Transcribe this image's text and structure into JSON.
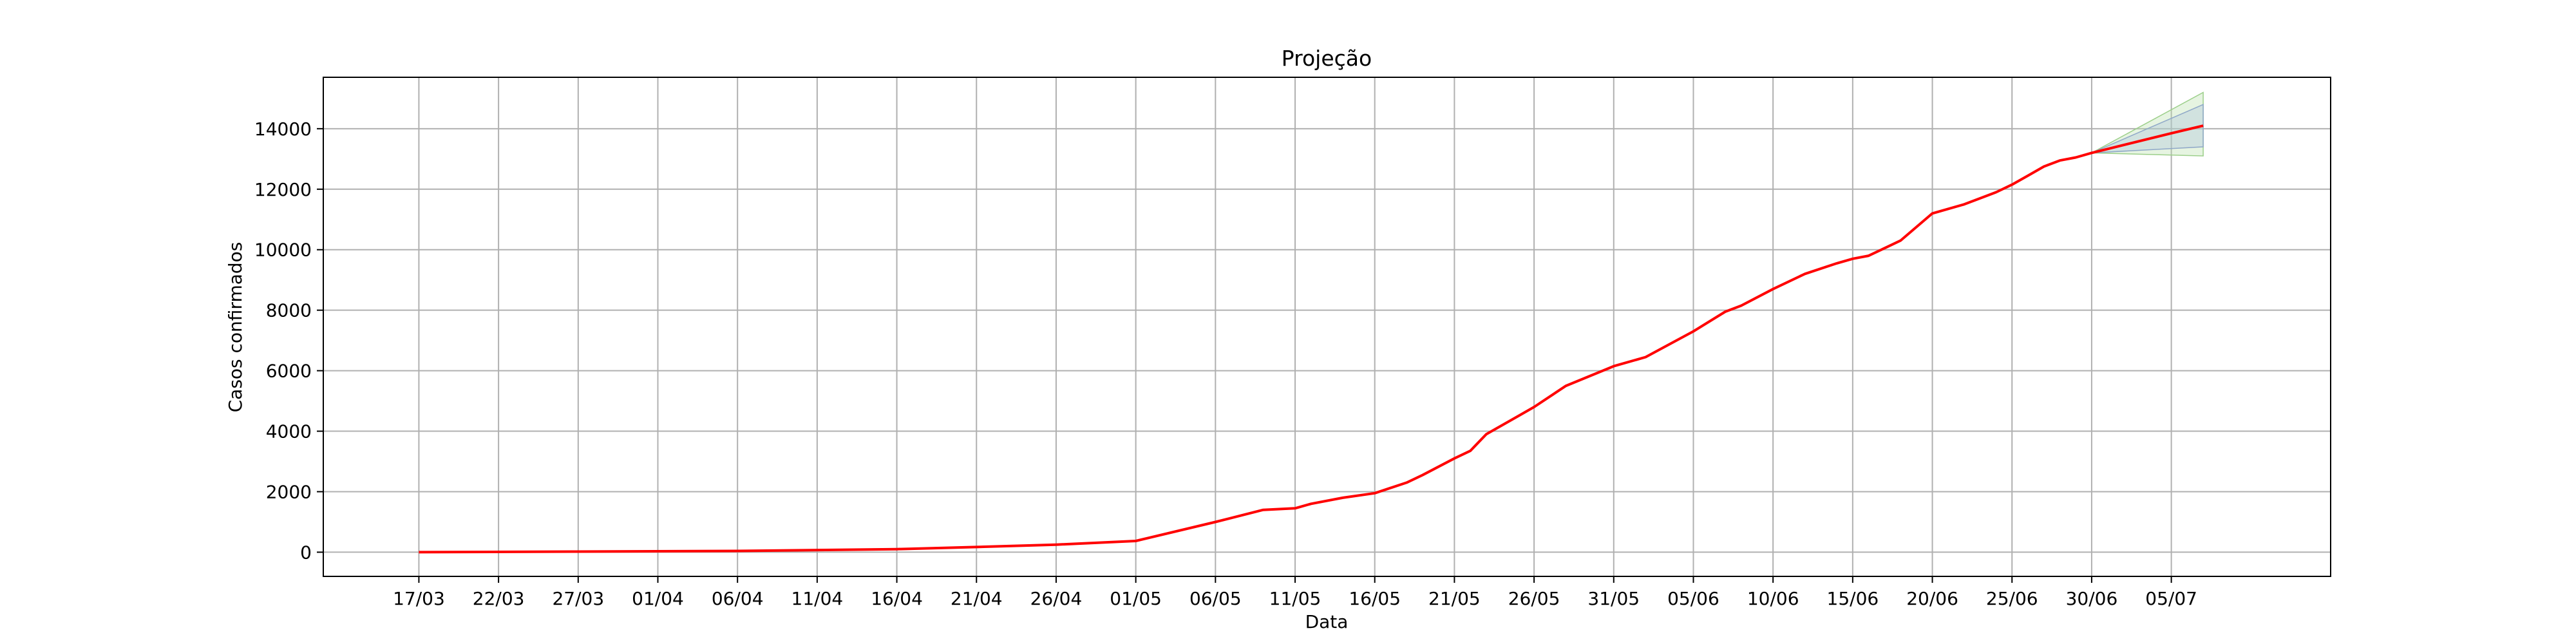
{
  "chart_data": {
    "type": "line",
    "title": "Projeção",
    "xlabel": "Data",
    "ylabel": "Casos confirmados",
    "grid": true,
    "ylim": [
      -800,
      15700
    ],
    "yticks": [
      0,
      2000,
      4000,
      6000,
      8000,
      10000,
      12000,
      14000
    ],
    "xticks": [
      "17/03",
      "22/03",
      "27/03",
      "01/04",
      "06/04",
      "11/04",
      "16/04",
      "21/04",
      "26/04",
      "01/05",
      "06/05",
      "11/05",
      "16/05",
      "21/05",
      "26/05",
      "31/05",
      "05/06",
      "10/06",
      "15/06",
      "20/06",
      "25/06",
      "30/06",
      "05/07"
    ],
    "xlim": [
      "11/03",
      "15/07"
    ],
    "colors": {
      "line": "#ff0000",
      "band_outer": "#b8e0a8",
      "band_inner": "#a8c0dc",
      "grid": "#b0b0b0"
    },
    "series": [
      {
        "x": [
          "17/03",
          "27/03",
          "06/04",
          "16/04",
          "21/04",
          "26/04",
          "01/05",
          "06/05",
          "09/05",
          "11/05",
          "12/05",
          "14/05",
          "16/05",
          "18/05",
          "19/05",
          "21/05",
          "22/05",
          "23/05",
          "25/05",
          "26/05",
          "28/05",
          "31/05",
          "02/06",
          "05/06",
          "07/06",
          "08/06",
          "10/06",
          "12/06",
          "14/06",
          "15/06",
          "16/06",
          "18/06",
          "20/06",
          "22/06",
          "23/06",
          "24/06",
          "25/06",
          "26/06",
          "27/06",
          "28/06",
          "29/06",
          "30/06",
          "05/07",
          "07/07"
        ],
        "values": [
          0,
          20,
          40,
          100,
          170,
          250,
          370,
          1000,
          1400,
          1450,
          1600,
          1800,
          1950,
          2300,
          2550,
          3100,
          3350,
          3900,
          4500,
          4800,
          5500,
          6150,
          6450,
          7300,
          7950,
          8150,
          8700,
          9200,
          9550,
          9700,
          9800,
          10300,
          11200,
          11500,
          11700,
          11900,
          12150,
          12450,
          12750,
          12950,
          13050,
          13200,
          13850,
          14100
        ]
      }
    ],
    "projection_band": {
      "x": [
        "30/06",
        "07/07"
      ],
      "outer_lower": [
        13200,
        13100
      ],
      "outer_upper": [
        13200,
        15200
      ],
      "inner_lower": [
        13200,
        13400
      ],
      "inner_upper": [
        13200,
        14800
      ]
    }
  }
}
